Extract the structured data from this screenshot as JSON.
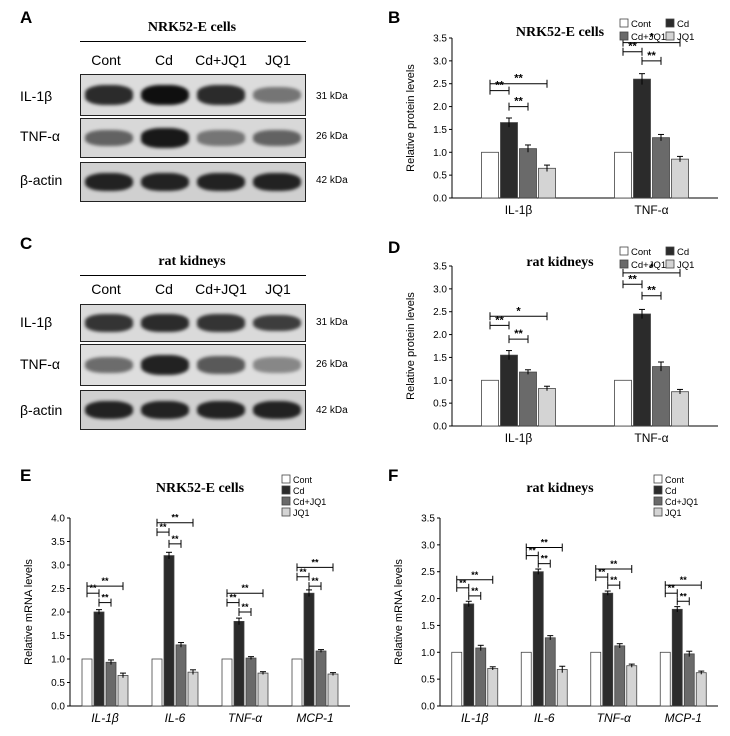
{
  "panels": {
    "A": {
      "letter": "A",
      "title": "NRK52-E cells"
    },
    "B": {
      "letter": "B"
    },
    "C": {
      "letter": "C",
      "title": "rat kidneys"
    },
    "D": {
      "letter": "D"
    },
    "E": {
      "letter": "E"
    },
    "F": {
      "letter": "F"
    }
  },
  "western_blots": [
    {
      "id": "A",
      "lanes": [
        "Cont",
        "Cd",
        "Cd+JQ1",
        "JQ1"
      ],
      "rows": [
        {
          "label": "IL-1β",
          "kda": "31 kDa",
          "intensity": [
            0.85,
            1.0,
            0.85,
            0.45
          ]
        },
        {
          "label": "TNF-α",
          "kda": "26 kDa",
          "intensity": [
            0.55,
            0.95,
            0.45,
            0.55
          ]
        },
        {
          "label": "β-actin",
          "kda": "42 kDa",
          "intensity": [
            0.9,
            0.9,
            0.9,
            0.9
          ]
        }
      ]
    },
    {
      "id": "C",
      "lanes": [
        "Cont",
        "Cd",
        "Cd+JQ1",
        "JQ1"
      ],
      "rows": [
        {
          "label": "IL-1β",
          "kda": "31 kDa",
          "intensity": [
            0.8,
            0.85,
            0.8,
            0.75
          ]
        },
        {
          "label": "TNF-α",
          "kda": "26 kDa",
          "intensity": [
            0.5,
            0.9,
            0.6,
            0.35
          ]
        },
        {
          "label": "β-actin",
          "kda": "42 kDa",
          "intensity": [
            0.9,
            0.9,
            0.9,
            0.9
          ]
        }
      ]
    }
  ],
  "legend": {
    "entries": [
      "Cont",
      "Cd",
      "Cd+JQ1",
      "JQ1"
    ]
  },
  "series_colors": [
    "#ffffff",
    "#2b2b2b",
    "#6a6a6a",
    "#d4d4d4"
  ],
  "chart_data": [
    {
      "id": "B",
      "type": "bar",
      "title": "NRK52-E cells",
      "ylabel": "Relative protein levels",
      "ylim": [
        0,
        3.5
      ],
      "ystep": 0.5,
      "categories": [
        "IL-1β",
        "TNF-α"
      ],
      "italic_categories": false,
      "series": [
        {
          "name": "Cont",
          "values": [
            1.0,
            1.0
          ],
          "errors": [
            0.0,
            0.0
          ]
        },
        {
          "name": "Cd",
          "values": [
            1.65,
            2.6
          ],
          "errors": [
            0.1,
            0.12
          ]
        },
        {
          "name": "Cd+JQ1",
          "values": [
            1.08,
            1.32
          ],
          "errors": [
            0.08,
            0.07
          ]
        },
        {
          "name": "JQ1",
          "values": [
            0.65,
            0.85
          ],
          "errors": [
            0.07,
            0.06
          ]
        }
      ],
      "brackets": [
        {
          "group": 0,
          "from": 0,
          "to": 1,
          "y": 2.35,
          "label": "**"
        },
        {
          "group": 0,
          "from": 0,
          "to": 3,
          "y": 2.5,
          "label": "**"
        },
        {
          "group": 0,
          "from": 1,
          "to": 2,
          "y": 2.0,
          "label": "**"
        },
        {
          "group": 1,
          "from": 0,
          "to": 1,
          "y": 3.2,
          "label": "**"
        },
        {
          "group": 1,
          "from": 0,
          "to": 3,
          "y": 3.4,
          "label": "*"
        },
        {
          "group": 1,
          "from": 1,
          "to": 2,
          "y": 3.0,
          "label": "**"
        }
      ]
    },
    {
      "id": "D",
      "type": "bar",
      "title": "rat kidneys",
      "ylabel": "Relative protein levels",
      "ylim": [
        0,
        3.5
      ],
      "ystep": 0.5,
      "categories": [
        "IL-1β",
        "TNF-α"
      ],
      "italic_categories": false,
      "series": [
        {
          "name": "Cont",
          "values": [
            1.0,
            1.0
          ],
          "errors": [
            0.0,
            0.0
          ]
        },
        {
          "name": "Cd",
          "values": [
            1.55,
            2.45
          ],
          "errors": [
            0.1,
            0.1
          ]
        },
        {
          "name": "Cd+JQ1",
          "values": [
            1.18,
            1.3
          ],
          "errors": [
            0.05,
            0.1
          ]
        },
        {
          "name": "JQ1",
          "values": [
            0.82,
            0.75
          ],
          "errors": [
            0.05,
            0.05
          ]
        }
      ],
      "brackets": [
        {
          "group": 0,
          "from": 0,
          "to": 1,
          "y": 2.2,
          "label": "**"
        },
        {
          "group": 0,
          "from": 0,
          "to": 3,
          "y": 2.4,
          "label": "*"
        },
        {
          "group": 0,
          "from": 1,
          "to": 2,
          "y": 1.9,
          "label": "**"
        },
        {
          "group": 1,
          "from": 0,
          "to": 1,
          "y": 3.1,
          "label": "**"
        },
        {
          "group": 1,
          "from": 0,
          "to": 3,
          "y": 3.35,
          "label": "*"
        },
        {
          "group": 1,
          "from": 1,
          "to": 2,
          "y": 2.85,
          "label": "**"
        }
      ]
    },
    {
      "id": "E",
      "type": "bar",
      "title": "NRK52-E cells",
      "ylabel": "Relative mRNA levels",
      "ylim": [
        0,
        4.0
      ],
      "ystep": 0.5,
      "ytick_decimals": 1,
      "categories": [
        "IL-1β",
        "IL-6",
        "TNF-α",
        "MCP-1"
      ],
      "italic_categories": true,
      "series": [
        {
          "name": "Cont",
          "values": [
            1.0,
            1.0,
            1.0,
            1.0
          ],
          "errors": [
            0.0,
            0.0,
            0.0,
            0.0
          ]
        },
        {
          "name": "Cd",
          "values": [
            2.0,
            3.2,
            1.8,
            2.4
          ],
          "errors": [
            0.05,
            0.07,
            0.07,
            0.07
          ]
        },
        {
          "name": "Cd+JQ1",
          "values": [
            0.93,
            1.3,
            1.02,
            1.17
          ],
          "errors": [
            0.05,
            0.05,
            0.03,
            0.03
          ]
        },
        {
          "name": "JQ1",
          "values": [
            0.65,
            0.72,
            0.7,
            0.68
          ],
          "errors": [
            0.05,
            0.05,
            0.03,
            0.03
          ]
        }
      ],
      "brackets": [
        {
          "group": 0,
          "from": 0,
          "to": 1,
          "y": 2.4,
          "label": "**"
        },
        {
          "group": 0,
          "from": 0,
          "to": 3,
          "y": 2.55,
          "label": "**"
        },
        {
          "group": 0,
          "from": 1,
          "to": 2,
          "y": 2.2,
          "label": "**"
        },
        {
          "group": 1,
          "from": 0,
          "to": 1,
          "y": 3.7,
          "label": "**"
        },
        {
          "group": 1,
          "from": 0,
          "to": 3,
          "y": 3.9,
          "label": "**"
        },
        {
          "group": 1,
          "from": 1,
          "to": 2,
          "y": 3.45,
          "label": "**"
        },
        {
          "group": 2,
          "from": 0,
          "to": 1,
          "y": 2.2,
          "label": "**"
        },
        {
          "group": 2,
          "from": 0,
          "to": 3,
          "y": 2.4,
          "label": "**"
        },
        {
          "group": 2,
          "from": 1,
          "to": 2,
          "y": 2.0,
          "label": "**"
        },
        {
          "group": 3,
          "from": 0,
          "to": 1,
          "y": 2.75,
          "label": "**"
        },
        {
          "group": 3,
          "from": 0,
          "to": 3,
          "y": 2.95,
          "label": "**"
        },
        {
          "group": 3,
          "from": 1,
          "to": 2,
          "y": 2.55,
          "label": "**"
        }
      ]
    },
    {
      "id": "F",
      "type": "bar",
      "title": "rat kidneys",
      "ylabel": "Relative mRNA levels",
      "ylim": [
        0,
        3.5
      ],
      "ystep": 0.5,
      "ytick_decimals": 1,
      "categories": [
        "IL-1β",
        "IL-6",
        "TNF-α",
        "MCP-1"
      ],
      "italic_categories": true,
      "series": [
        {
          "name": "Cont",
          "values": [
            1.0,
            1.0,
            1.0,
            1.0
          ],
          "errors": [
            0.0,
            0.0,
            0.0,
            0.0
          ]
        },
        {
          "name": "Cd",
          "values": [
            1.9,
            2.5,
            2.1,
            1.8
          ],
          "errors": [
            0.05,
            0.05,
            0.04,
            0.05
          ]
        },
        {
          "name": "Cd+JQ1",
          "values": [
            1.08,
            1.27,
            1.12,
            0.97
          ],
          "errors": [
            0.05,
            0.04,
            0.04,
            0.05
          ]
        },
        {
          "name": "JQ1",
          "values": [
            0.7,
            0.68,
            0.75,
            0.62
          ],
          "errors": [
            0.03,
            0.06,
            0.03,
            0.03
          ]
        }
      ],
      "brackets": [
        {
          "group": 0,
          "from": 0,
          "to": 1,
          "y": 2.2,
          "label": "**"
        },
        {
          "group": 0,
          "from": 0,
          "to": 3,
          "y": 2.35,
          "label": "**"
        },
        {
          "group": 0,
          "from": 1,
          "to": 2,
          "y": 2.05,
          "label": "**"
        },
        {
          "group": 1,
          "from": 0,
          "to": 1,
          "y": 2.8,
          "label": "**"
        },
        {
          "group": 1,
          "from": 0,
          "to": 3,
          "y": 2.95,
          "label": "**"
        },
        {
          "group": 1,
          "from": 1,
          "to": 2,
          "y": 2.65,
          "label": "**"
        },
        {
          "group": 2,
          "from": 0,
          "to": 1,
          "y": 2.4,
          "label": "**"
        },
        {
          "group": 2,
          "from": 0,
          "to": 3,
          "y": 2.55,
          "label": "**"
        },
        {
          "group": 2,
          "from": 1,
          "to": 2,
          "y": 2.25,
          "label": "**"
        },
        {
          "group": 3,
          "from": 0,
          "to": 1,
          "y": 2.1,
          "label": "**"
        },
        {
          "group": 3,
          "from": 0,
          "to": 3,
          "y": 2.25,
          "label": "**"
        },
        {
          "group": 3,
          "from": 1,
          "to": 2,
          "y": 1.95,
          "label": "**"
        }
      ]
    }
  ]
}
